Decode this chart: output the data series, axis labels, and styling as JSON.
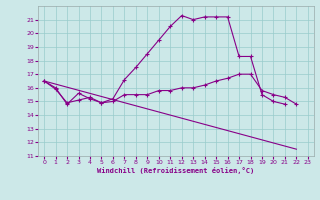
{
  "xlabel": "Windchill (Refroidissement éolien,°C)",
  "background_color": "#cce8e8",
  "grid_color": "#99cccc",
  "line_color": "#880088",
  "xlim": [
    -0.5,
    23.5
  ],
  "ylim": [
    11,
    22
  ],
  "yticks": [
    11,
    12,
    13,
    14,
    15,
    16,
    17,
    18,
    19,
    20,
    21
  ],
  "xticks": [
    0,
    1,
    2,
    3,
    4,
    5,
    6,
    7,
    8,
    9,
    10,
    11,
    12,
    13,
    14,
    15,
    16,
    17,
    18,
    19,
    20,
    21,
    22,
    23
  ],
  "series": [
    {
      "x": [
        0,
        1,
        2,
        3,
        4,
        5,
        6,
        7,
        8,
        9,
        10,
        11,
        12,
        13,
        14,
        15,
        16,
        17,
        18,
        19,
        20,
        21
      ],
      "y": [
        16.5,
        16.0,
        14.8,
        15.6,
        15.2,
        14.9,
        15.2,
        16.6,
        17.5,
        18.5,
        19.5,
        20.5,
        21.3,
        21.0,
        21.2,
        21.2,
        21.2,
        18.3,
        18.3,
        15.5,
        15.0,
        14.8
      ],
      "marker": true
    },
    {
      "x": [
        0,
        1,
        2,
        3,
        4,
        5,
        6,
        7,
        8,
        9,
        10,
        11,
        12,
        13,
        14,
        15,
        16,
        17,
        18,
        19,
        20,
        21,
        22
      ],
      "y": [
        16.5,
        15.9,
        14.9,
        15.1,
        15.3,
        14.9,
        15.0,
        15.5,
        15.5,
        15.5,
        15.8,
        15.8,
        16.0,
        16.0,
        16.2,
        16.5,
        16.7,
        17.0,
        17.0,
        15.8,
        15.5,
        15.3,
        14.8
      ],
      "marker": true
    },
    {
      "x": [
        0,
        22
      ],
      "y": [
        16.5,
        11.5
      ],
      "marker": false
    }
  ]
}
